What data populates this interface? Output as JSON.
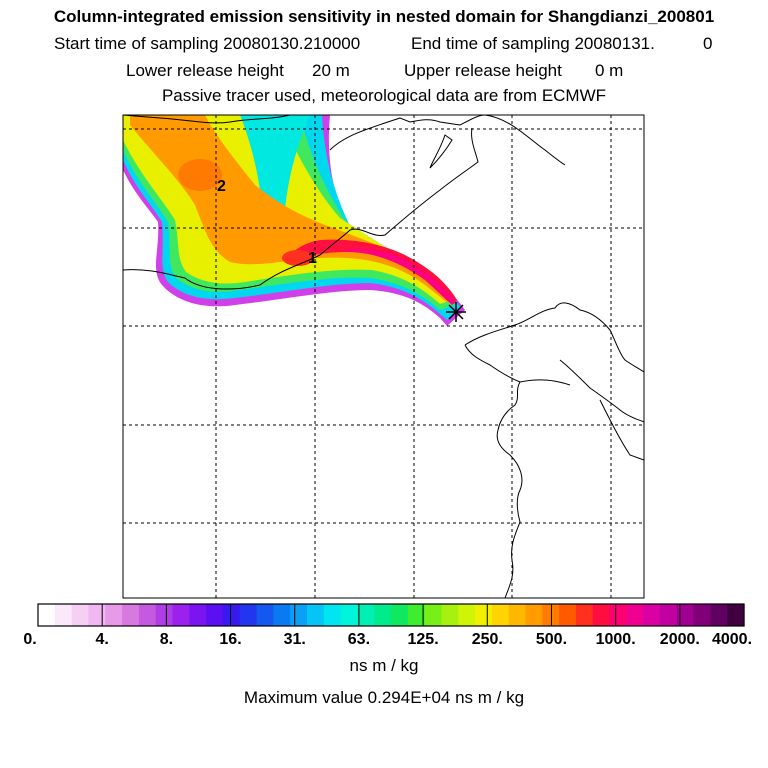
{
  "header": {
    "title": "Column-integrated emission sensitivity in nested domain for Shangdianzi_200801",
    "start_label": "Start time of sampling 20080130.210000",
    "end_label": "End time of sampling 20080131.",
    "end_hour": "0",
    "lower_label": "Lower release height",
    "lower_value": "20 m",
    "upper_label": "Upper release height",
    "upper_value": "0 m",
    "note": "Passive tracer used, meteorological data are from ECMWF"
  },
  "map": {
    "cluster_labels": [
      "2",
      "1"
    ],
    "receptor_symbol": "✳"
  },
  "chart_data": {
    "type": "heatmap",
    "title": "Column-integrated emission sensitivity in nested domain for Shangdianzi_200801",
    "colorbar": {
      "ticks": [
        "0.",
        "4.",
        "8.",
        "16.",
        "31.",
        "63.",
        "125.",
        "250.",
        "500.",
        "1000.",
        "2000.",
        "4000."
      ],
      "unit": "ns m / kg",
      "colors": [
        "#ffffff",
        "#fbe8fb",
        "#f5d0f5",
        "#efb8f0",
        "#e69ae8",
        "#d77ae0",
        "#c45ae0",
        "#b03ce6",
        "#9a22ec",
        "#7a14f0",
        "#5a10f0",
        "#3a18f0",
        "#2236f0",
        "#1458f0",
        "#0a7af2",
        "#0aa0f4",
        "#06c4f4",
        "#00e6f0",
        "#00f4dc",
        "#00f0b4",
        "#00ec8c",
        "#10e860",
        "#40ec30",
        "#78f018",
        "#a8f010",
        "#d0f408",
        "#f0f000",
        "#ffd400",
        "#ffb800",
        "#ff9c00",
        "#ff7c00",
        "#ff5a00",
        "#ff3020",
        "#ff0c40",
        "#ff0070",
        "#f00090",
        "#d800a0",
        "#c000a0",
        "#a00090",
        "#800078",
        "#600060",
        "#400040"
      ]
    },
    "maximum_value": "Maximum value  0.294E+04 ns m / kg"
  }
}
